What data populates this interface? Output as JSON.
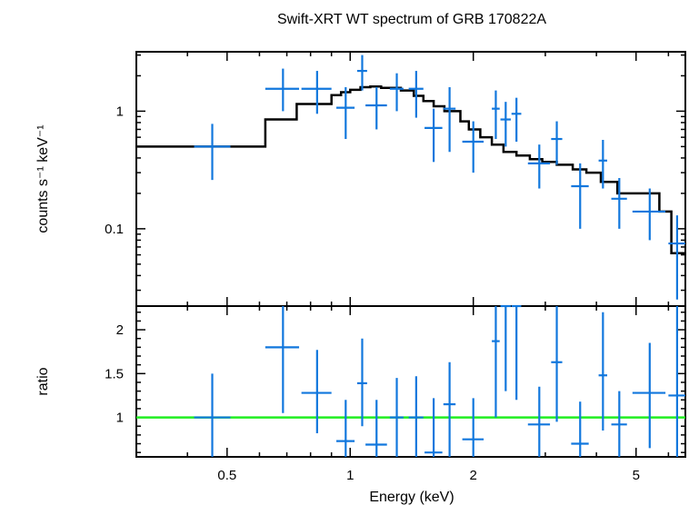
{
  "chart_data": [
    {
      "type": "scatter",
      "title": "Swift-XRT WT spectrum of GRB 170822A",
      "xlabel": "",
      "ylabel": "counts s⁻¹ keV⁻¹",
      "xscale": "log",
      "yscale": "log",
      "xlim": [
        0.3,
        6.6
      ],
      "ylim": [
        0.022,
        3.2
      ],
      "y_ticks": [
        0.1,
        1
      ],
      "y_tick_labels": [
        "0.1",
        "1"
      ],
      "model_step": {
        "color": "#000000",
        "edges": [
          0.3,
          0.62,
          0.74,
          0.9,
          0.95,
          1.0,
          1.06,
          1.12,
          1.19,
          1.33,
          1.43,
          1.51,
          1.6,
          1.7,
          1.86,
          1.95,
          2.08,
          2.22,
          2.37,
          2.55,
          2.75,
          2.95,
          3.2,
          3.5,
          3.78,
          4.1,
          4.5,
          5.05,
          5.7,
          6.1,
          6.6
        ],
        "values": [
          0.5,
          0.85,
          1.15,
          1.37,
          1.45,
          1.52,
          1.6,
          1.62,
          1.58,
          1.5,
          1.35,
          1.22,
          1.1,
          1.0,
          0.82,
          0.7,
          0.6,
          0.52,
          0.45,
          0.42,
          0.39,
          0.37,
          0.35,
          0.32,
          0.3,
          0.25,
          0.2,
          0.2,
          0.14,
          0.062
        ]
      },
      "points": {
        "color": "#1177dd",
        "x": [
          0.46,
          0.685,
          0.83,
          0.975,
          1.07,
          1.16,
          1.3,
          1.45,
          1.6,
          1.75,
          2.0,
          2.27,
          2.4,
          2.55,
          2.9,
          3.2,
          3.65,
          4.15,
          4.55,
          5.4,
          6.3
        ],
        "xerr_lo": [
          0.0,
          0.065,
          0.07,
          0.05,
          0.03,
          0.07,
          0.05,
          0.06,
          0.08,
          0.06,
          0.12,
          0.05,
          0.07,
          0.07,
          0.18,
          0.1,
          0.18,
          0.1,
          0.2,
          0.5,
          0.3
        ],
        "xerr_hi": [
          0.0,
          0.065,
          0.07,
          0.05,
          0.03,
          0.07,
          0.05,
          0.06,
          0.08,
          0.06,
          0.12,
          0.05,
          0.07,
          0.07,
          0.18,
          0.1,
          0.18,
          0.1,
          0.2,
          0.5,
          0.3
        ],
        "y": [
          0.5,
          1.55,
          1.55,
          1.07,
          2.2,
          1.12,
          1.55,
          1.55,
          0.72,
          1.05,
          0.55,
          1.05,
          0.85,
          0.95,
          0.36,
          0.58,
          0.23,
          0.38,
          0.18,
          0.14,
          0.075
        ],
        "y_lo": [
          0.26,
          1.0,
          0.95,
          0.58,
          1.5,
          0.7,
          1.0,
          0.88,
          0.37,
          0.45,
          0.3,
          0.58,
          0.5,
          0.55,
          0.22,
          0.35,
          0.1,
          0.22,
          0.1,
          0.08,
          0.025
        ],
        "y_hi": [
          0.78,
          2.3,
          2.2,
          1.6,
          3.0,
          1.6,
          2.1,
          2.2,
          1.05,
          1.6,
          0.82,
          1.5,
          1.2,
          1.3,
          0.52,
          0.82,
          0.36,
          0.57,
          0.27,
          0.22,
          0.13
        ]
      }
    },
    {
      "type": "scatter",
      "title": "",
      "xlabel": "Energy (keV)",
      "ylabel": "ratio",
      "xscale": "log",
      "xlim": [
        0.3,
        6.6
      ],
      "ylim": [
        0.55,
        2.27
      ],
      "x_ticks": [
        0.5,
        1,
        2,
        5
      ],
      "x_tick_labels": [
        "0.5",
        "1",
        "2",
        "5"
      ],
      "y_ticks": [
        1,
        1.5,
        2
      ],
      "y_tick_labels": [
        "1",
        "1.5",
        "2"
      ],
      "reference_line": {
        "y": 1,
        "color": "#22ee22"
      },
      "points": {
        "color": "#1177dd",
        "x": [
          0.46,
          0.685,
          0.83,
          0.975,
          1.07,
          1.16,
          1.3,
          1.45,
          1.6,
          1.75,
          2.0,
          2.27,
          2.4,
          2.55,
          2.9,
          3.2,
          3.65,
          4.15,
          4.55,
          5.4,
          6.3
        ],
        "xerr_lo": [
          0.0,
          0.065,
          0.07,
          0.05,
          0.03,
          0.07,
          0.05,
          0.06,
          0.08,
          0.06,
          0.12,
          0.05,
          0.07,
          0.07,
          0.18,
          0.1,
          0.18,
          0.1,
          0.2,
          0.5,
          0.3
        ],
        "xerr_hi": [
          0.0,
          0.065,
          0.07,
          0.05,
          0.03,
          0.07,
          0.05,
          0.06,
          0.08,
          0.06,
          0.12,
          0.05,
          0.07,
          0.07,
          0.18,
          0.1,
          0.18,
          0.1,
          0.2,
          0.5,
          0.3
        ],
        "y": [
          1.0,
          1.8,
          1.28,
          0.73,
          1.39,
          0.69,
          1.0,
          1.0,
          0.6,
          1.15,
          0.75,
          1.87,
          2.27,
          2.27,
          0.92,
          1.63,
          0.7,
          1.48,
          0.92,
          1.28,
          1.25
        ],
        "y_lo": [
          0.55,
          1.05,
          0.82,
          0.55,
          0.9,
          0.55,
          0.55,
          0.55,
          0.55,
          0.55,
          0.55,
          1.0,
          1.3,
          1.2,
          0.55,
          0.95,
          0.55,
          0.85,
          0.55,
          0.65,
          0.55
        ],
        "y_hi": [
          1.5,
          2.27,
          1.77,
          1.2,
          1.9,
          1.2,
          1.45,
          1.47,
          1.22,
          1.63,
          1.22,
          2.27,
          2.27,
          2.27,
          1.35,
          2.27,
          1.18,
          2.2,
          1.3,
          1.85,
          2.27
        ]
      }
    }
  ]
}
